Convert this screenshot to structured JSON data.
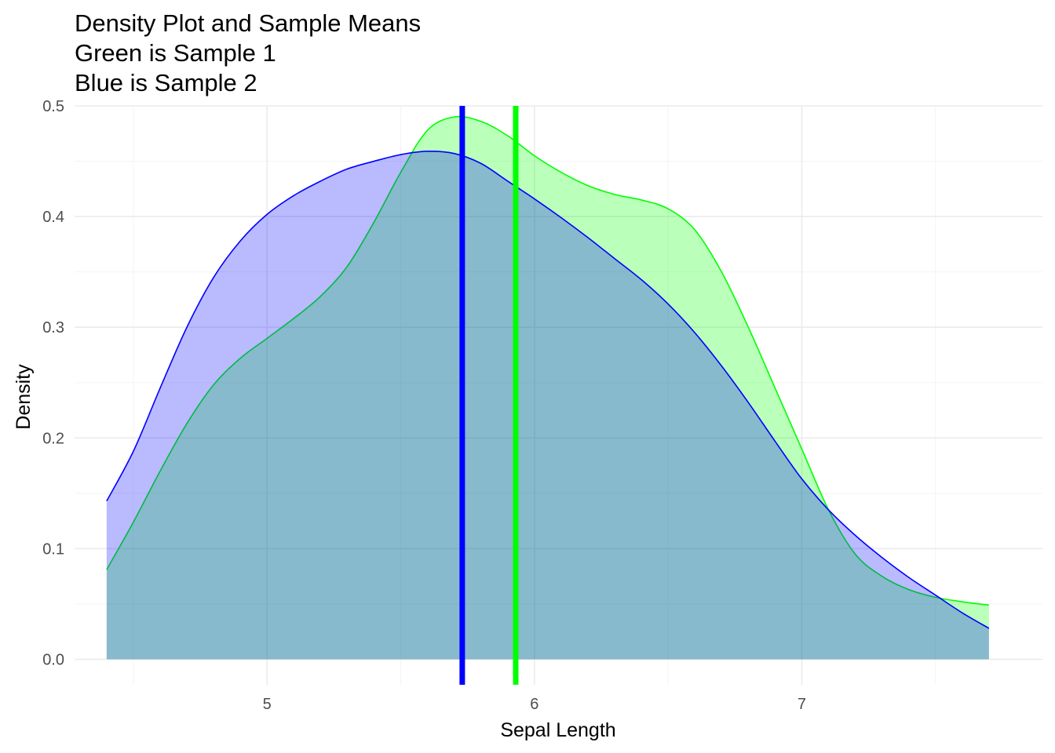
{
  "chart_data": {
    "type": "area",
    "title_lines": [
      "Density Plot and Sample Means",
      "Green is Sample 1",
      "Blue is Sample 2"
    ],
    "xlabel": "Sepal Length",
    "ylabel": "Density",
    "xlim": [
      4.28,
      7.9
    ],
    "ylim": [
      -0.023,
      0.5
    ],
    "x_ticks": [
      5,
      6,
      7
    ],
    "x_tick_labels": [
      "5",
      "6",
      "7"
    ],
    "y_ticks": [
      0.0,
      0.1,
      0.2,
      0.3,
      0.4,
      0.5
    ],
    "y_tick_labels": [
      "0.0",
      "0.1",
      "0.2",
      "0.3",
      "0.4",
      "0.5"
    ],
    "grid": true,
    "legend": "none",
    "series": [
      {
        "color": "#00ff00",
        "fill": "#00ff00",
        "fill_opacity": 0.27,
        "x": [
          4.4,
          4.5,
          4.6,
          4.7,
          4.8,
          4.9,
          5.0,
          5.1,
          5.2,
          5.3,
          5.4,
          5.5,
          5.6,
          5.7,
          5.8,
          5.9,
          6.0,
          6.1,
          6.2,
          6.3,
          6.4,
          6.5,
          6.6,
          6.7,
          6.8,
          6.9,
          7.0,
          7.1,
          7.2,
          7.3,
          7.4,
          7.5,
          7.6,
          7.7
        ],
        "y": [
          0.081,
          0.124,
          0.17,
          0.213,
          0.248,
          0.272,
          0.29,
          0.308,
          0.328,
          0.355,
          0.395,
          0.44,
          0.478,
          0.49,
          0.486,
          0.473,
          0.455,
          0.44,
          0.428,
          0.42,
          0.415,
          0.407,
          0.388,
          0.35,
          0.3,
          0.245,
          0.19,
          0.135,
          0.095,
          0.075,
          0.063,
          0.056,
          0.052,
          0.049
        ]
      },
      {
        "color": "#0000ff",
        "fill": "#0000ff",
        "fill_opacity": 0.27,
        "x": [
          4.4,
          4.5,
          4.6,
          4.7,
          4.8,
          4.9,
          5.0,
          5.1,
          5.2,
          5.3,
          5.4,
          5.5,
          5.6,
          5.7,
          5.8,
          5.9,
          6.0,
          6.1,
          6.2,
          6.3,
          6.4,
          6.5,
          6.6,
          6.7,
          6.8,
          6.9,
          7.0,
          7.1,
          7.2,
          7.3,
          7.4,
          7.5,
          7.6,
          7.7
        ],
        "y": [
          0.143,
          0.188,
          0.245,
          0.3,
          0.345,
          0.378,
          0.402,
          0.419,
          0.432,
          0.443,
          0.45,
          0.456,
          0.459,
          0.457,
          0.448,
          0.432,
          0.416,
          0.399,
          0.381,
          0.362,
          0.343,
          0.321,
          0.295,
          0.265,
          0.232,
          0.197,
          0.163,
          0.135,
          0.112,
          0.092,
          0.074,
          0.058,
          0.042,
          0.028
        ]
      }
    ],
    "vlines": [
      {
        "x": 5.73,
        "color": "#0000ff"
      },
      {
        "x": 5.93,
        "color": "#00ff00"
      }
    ]
  }
}
